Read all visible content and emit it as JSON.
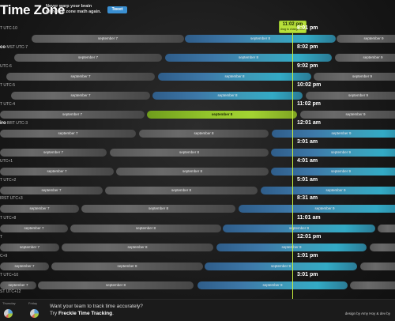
{
  "header": {
    "logo": "Time Zone",
    "tagline": "Never warp your brain with time zone math again.",
    "tweet_button": "Tweet"
  },
  "now_badge": {
    "time": "11:02 pm",
    "subtitle": "drag to change time"
  },
  "zones": [
    {
      "label": "T UTC-10",
      "label_bold": "",
      "time": "8:01 pm"
    },
    {
      "label": " MST UTC-7",
      "label_bold": "co",
      "time": "8:02 pm"
    },
    {
      "label": "UTC-6",
      "label_bold": "",
      "time": "9:02 pm"
    },
    {
      "label": "T UTC-5",
      "label_bold": "",
      "time": "10:02 pm"
    },
    {
      "label": "T UTC-4",
      "label_bold": "",
      "time": "11:02 pm"
    },
    {
      "label": " BRT UTC-3",
      "label_bold": "iro",
      "time": "12:01 am"
    },
    {
      "label": "",
      "label_bold": "",
      "time": "3:01 am"
    },
    {
      "label": "UTC+1",
      "label_bold": "",
      "time": "4:01 am"
    },
    {
      "label": "T UTC+2",
      "label_bold": "",
      "time": "5:01 am"
    },
    {
      "label": "IRST UTC+3",
      "label_bold": "",
      "time": "8:31 am"
    },
    {
      "label": "T UTC+8",
      "label_bold": "",
      "time": "11:01 am"
    },
    {
      "label": "T",
      "label_bold": "",
      "time": "12:01 pm"
    },
    {
      "label": "C+9",
      "label_bold": "",
      "time": "1:01 pm"
    },
    {
      "label": "T UTC+10",
      "label_bold": "",
      "time": "3:01 pm"
    },
    {
      "label": "ST UTC+12",
      "label_bold": "",
      "time": ""
    }
  ],
  "day_labels": {
    "sep7": "september 7",
    "sep8": "september 8",
    "sep9": "september 9"
  },
  "footer": {
    "mini_left": "Thursday",
    "mini_right": "Friday",
    "cta_line1": "Want your team to track time accurately?",
    "cta_line2_prefix": "Try ",
    "cta_line2_link": "Freckle Time Tracking",
    "cta_line2_suffix": ".",
    "credit": "design by Amy Hoy & dev by"
  },
  "colors": {
    "accent": "#b8e03a",
    "blue": "#3d9bb9",
    "gray_bar": "#5e5e5e"
  }
}
